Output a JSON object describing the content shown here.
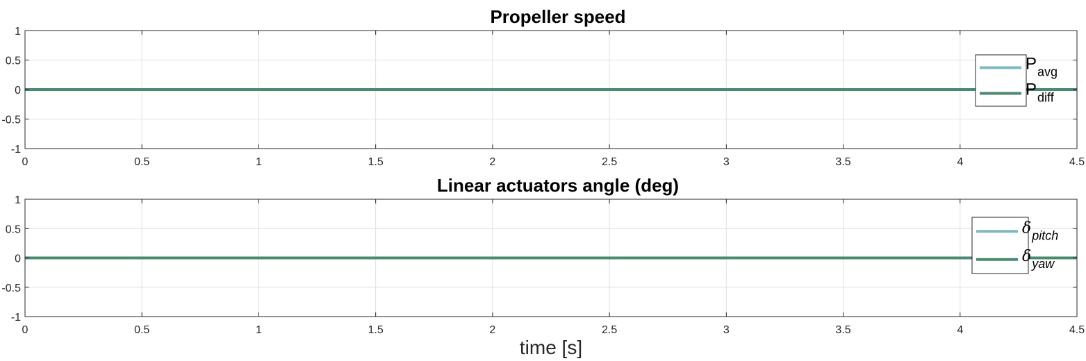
{
  "chart_data": [
    {
      "type": "line",
      "title": "Propeller speed",
      "xlabel": "",
      "ylabel": "",
      "xlim": [
        0,
        4.5
      ],
      "ylim": [
        -1,
        1
      ],
      "xticks": [
        "0",
        "0.5",
        "1",
        "1.5",
        "2",
        "2.5",
        "3",
        "3.5",
        "4",
        "4.5"
      ],
      "yticks": [
        "-1",
        "-0.5",
        "0",
        "0.5",
        "1"
      ],
      "grid": true,
      "legend_position": "right",
      "series": [
        {
          "name": "Pavg",
          "legend_main": "P",
          "legend_sub": "avg",
          "color": "#7fb8c4",
          "x": [
            0,
            4.5
          ],
          "y": [
            0,
            0
          ]
        },
        {
          "name": "Pdiff",
          "legend_main": "P",
          "legend_sub": "diff",
          "color": "#4a8a6e",
          "x": [
            0,
            4.5
          ],
          "y": [
            0,
            0
          ]
        }
      ]
    },
    {
      "type": "line",
      "title": "Linear actuators angle (deg)",
      "xlabel": "time [s]",
      "ylabel": "",
      "xlim": [
        0,
        4.5
      ],
      "ylim": [
        -1,
        1
      ],
      "xticks": [
        "0",
        "0.5",
        "1",
        "1.5",
        "2",
        "2.5",
        "3",
        "3.5",
        "4",
        "4.5"
      ],
      "yticks": [
        "-1",
        "-0.5",
        "0",
        "0.5",
        "1"
      ],
      "grid": true,
      "legend_position": "right",
      "series": [
        {
          "name": "δpitch",
          "legend_main": "δ",
          "legend_sub": "pitch",
          "color": "#7fb8c4",
          "x": [
            0,
            4.5
          ],
          "y": [
            0,
            0
          ]
        },
        {
          "name": "δyaw",
          "legend_main": "δ",
          "legend_sub": "yaw",
          "color": "#4a8a6e",
          "x": [
            0,
            4.5
          ],
          "y": [
            0,
            0
          ]
        }
      ]
    }
  ]
}
